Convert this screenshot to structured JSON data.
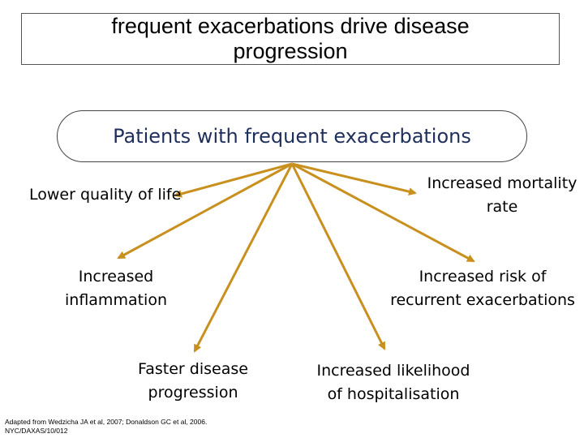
{
  "title": {
    "line1": "frequent exacerbations drive disease",
    "line2": "progression"
  },
  "center": {
    "label": "Patients with frequent exacerbations"
  },
  "outcomes": {
    "quality": {
      "line1": "Lower quality of life"
    },
    "mortality": {
      "line1": "Increased mortality",
      "line2": "rate"
    },
    "inflammation": {
      "line1": "Increased",
      "line2": "inflammation"
    },
    "risk": {
      "line1": "Increased risk of",
      "line2": "recurrent exacerbations"
    },
    "progression": {
      "line1": "Faster disease",
      "line2": "progression"
    },
    "hospitalisation": {
      "line1": "Increased likelihood",
      "line2": "of hospitalisation"
    }
  },
  "footnote": {
    "citation": "Adapted from Wedzicha JA et al, 2007; Donaldson GC et al, 2006.",
    "code": "NYC/DAXAS/10/012"
  },
  "colors": {
    "arrow": "#c8901e",
    "pill_text": "#1f2f5c"
  }
}
